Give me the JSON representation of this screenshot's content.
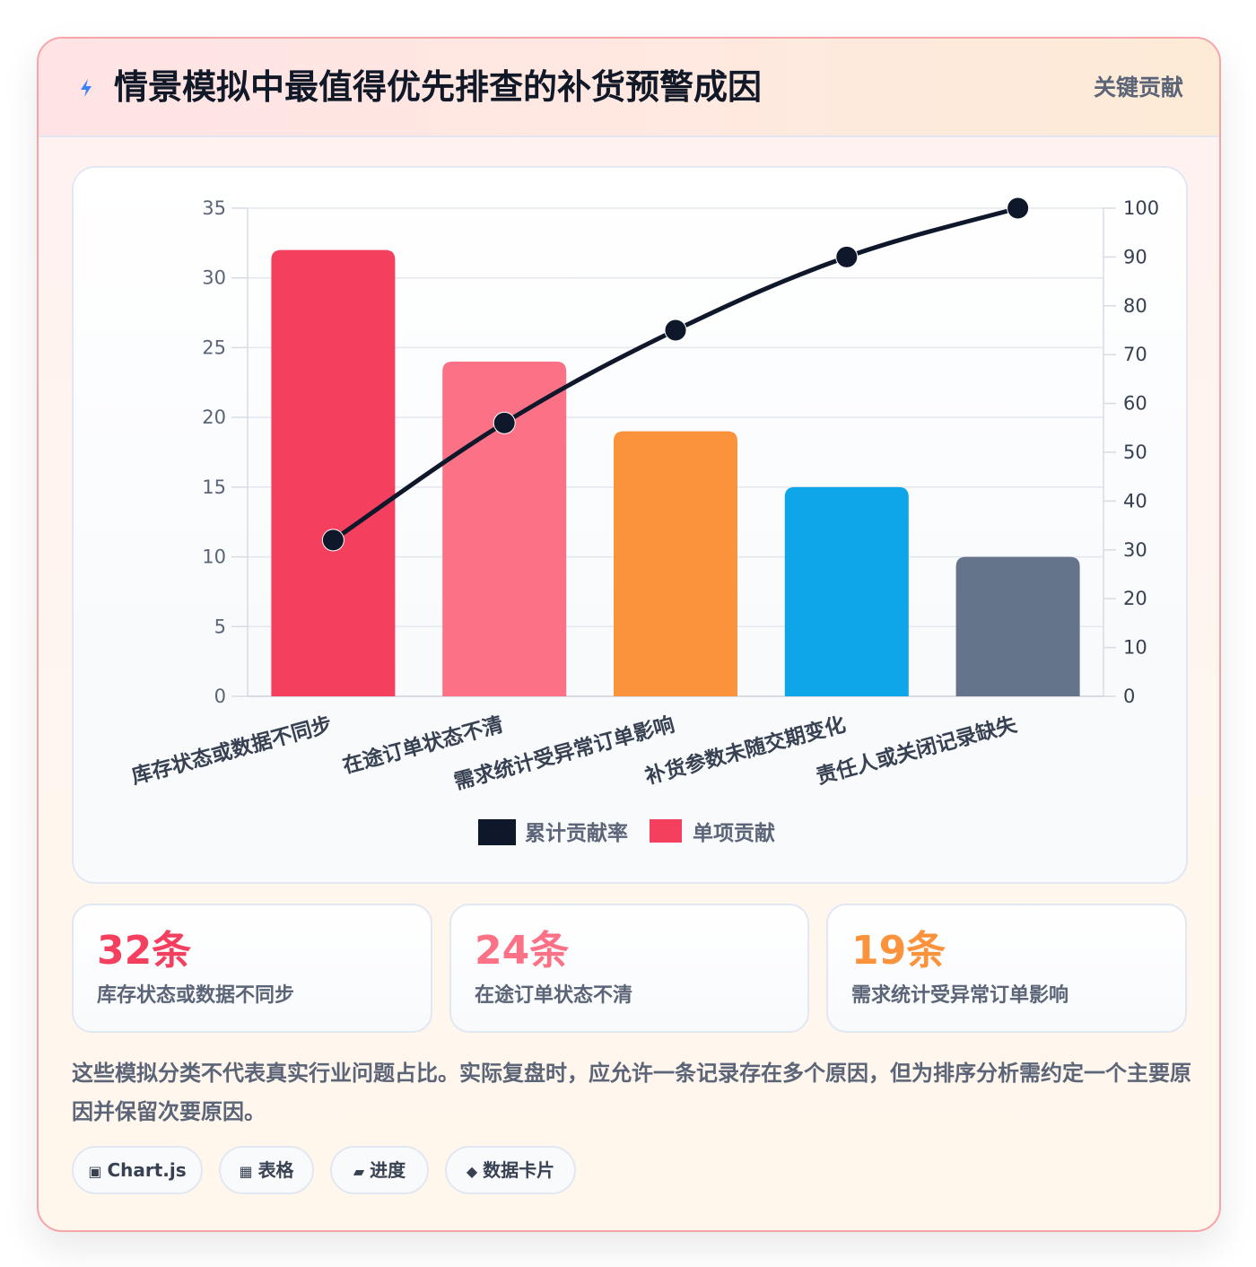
{
  "header": {
    "title": "情景模拟中最值得优先排查的补货预警成因",
    "tag": "关键贡献"
  },
  "chart_data": {
    "type": "bar",
    "categories": [
      "库存状态或数据不同步",
      "在途订单状态不清",
      "需求统计受异常订单影响",
      "补货参数未随交期变化",
      "责任人或关闭记录缺失"
    ],
    "series": [
      {
        "name": "单项贡献",
        "type": "bar",
        "axis": "left",
        "values": [
          32,
          24,
          19,
          15,
          10
        ],
        "colors": [
          "#f43f5e",
          "#fb7185",
          "#fb923c",
          "#0ea5e9",
          "#64748b"
        ]
      },
      {
        "name": "累计贡献率",
        "type": "line",
        "axis": "right",
        "values": [
          32,
          56,
          75,
          90,
          100
        ],
        "color": "#0f172a"
      }
    ],
    "y_left": {
      "min": 0,
      "max": 35,
      "ticks": [
        "0",
        "5",
        "10",
        "15",
        "20",
        "25",
        "30",
        "35"
      ]
    },
    "y_right": {
      "min": 0,
      "max": 100,
      "ticks": [
        "0",
        "10",
        "20",
        "30",
        "40",
        "50",
        "60",
        "70",
        "80",
        "90",
        "100"
      ]
    },
    "legend": [
      "累计贡献率",
      "单项贡献"
    ],
    "legend_position": "bottom",
    "grid": true
  },
  "stats": [
    {
      "value": "32条",
      "label": "库存状态或数据不同步",
      "color": "#f43f5e"
    },
    {
      "value": "24条",
      "label": "在途订单状态不清",
      "color": "#fb7185"
    },
    {
      "value": "19条",
      "label": "需求统计受异常订单影响",
      "color": "#fb923c"
    }
  ],
  "note": "这些模拟分类不代表真实行业问题占比。实际复盘时，应允许一条记录存在多个原因，但为排序分析需约定一个主要原因并保留次要原因。",
  "chips": [
    {
      "icon": "▣",
      "label": "Chart.js"
    },
    {
      "icon": "▦",
      "label": "表格"
    },
    {
      "icon": "▰",
      "label": "进度"
    },
    {
      "icon": "◆",
      "label": "数据卡片"
    }
  ]
}
